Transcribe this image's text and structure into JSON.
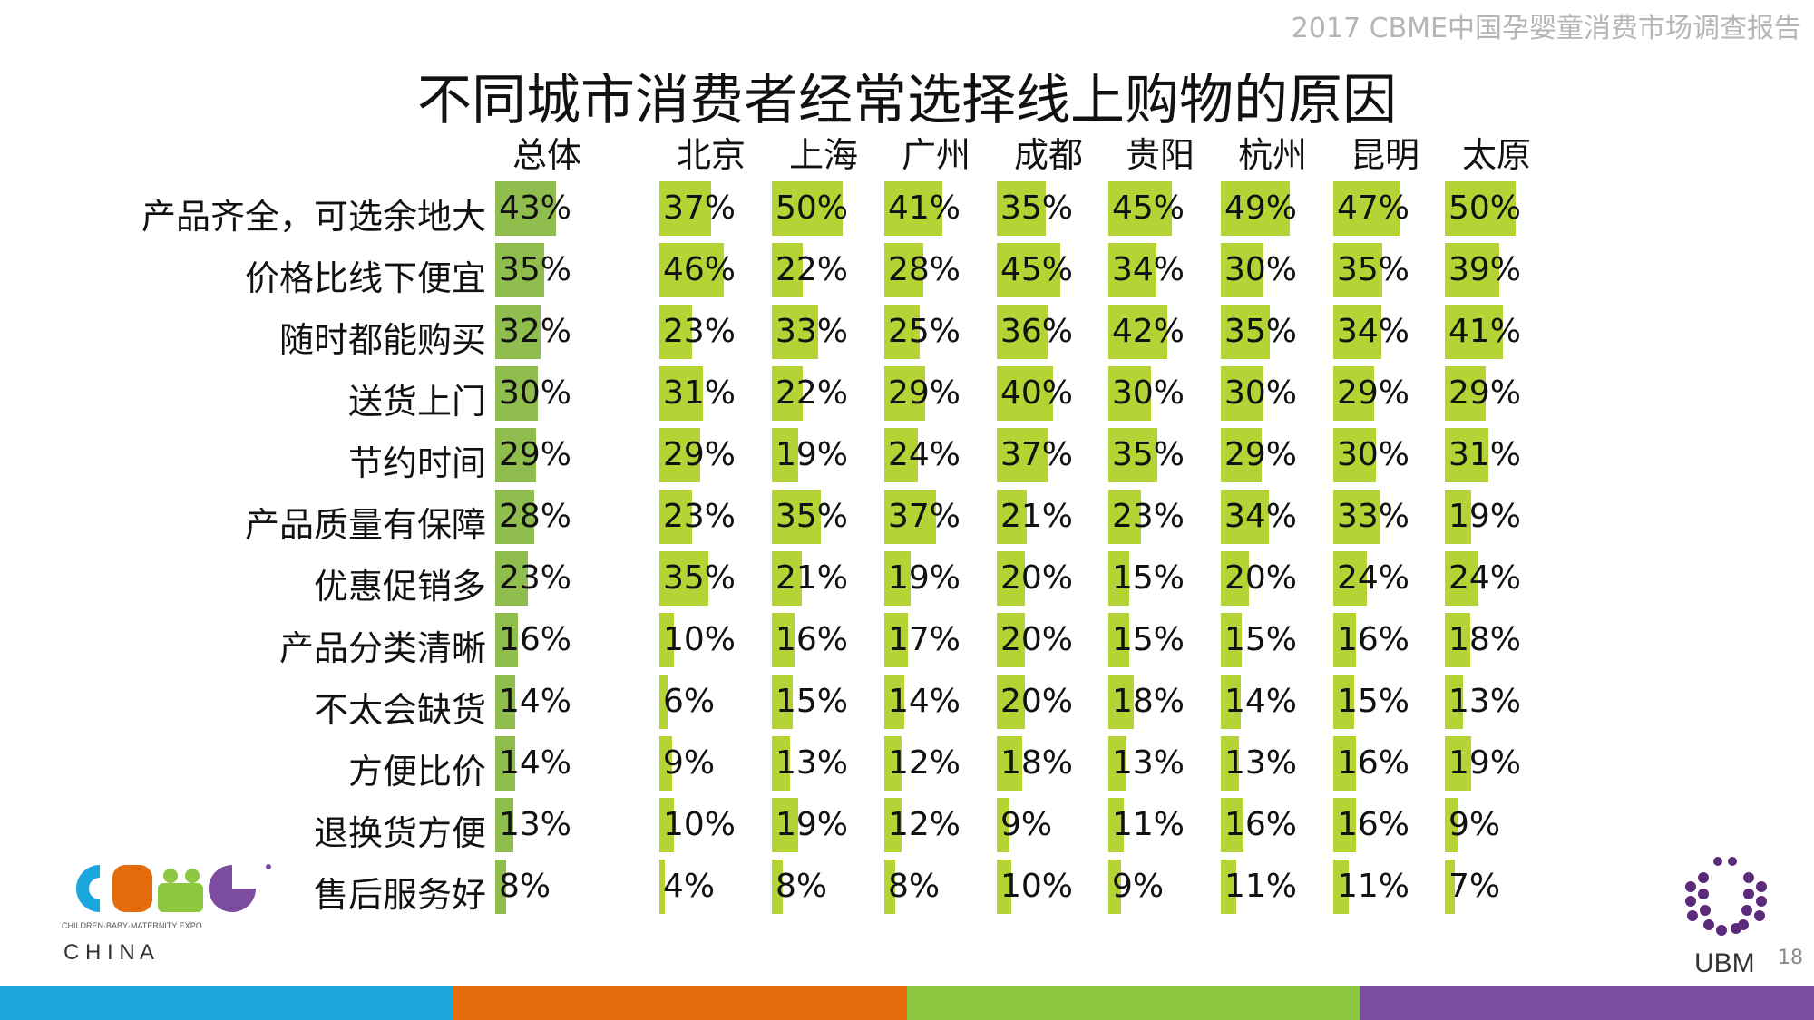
{
  "header_note": "2017 CBME中国孕婴童消费市场调查报告",
  "title": "不同城市消费者经常选择线上购物的原因",
  "page_number": "18",
  "logos": {
    "cbme_tagline": "CHILDREN·BABY·MATERNITY EXPO",
    "cbme_sub": "C H I N A",
    "ubm": "UBM"
  },
  "colors": {
    "overall_bar": "#8fbe4f",
    "city_bar": "#b4d334",
    "footer": [
      "#1ba7de",
      "#e46c0a",
      "#8dc63f",
      "#7b4c9f"
    ]
  },
  "chart_data": {
    "type": "table",
    "columns": [
      "总体",
      "北京",
      "上海",
      "广州",
      "成都",
      "贵阳",
      "杭州",
      "昆明",
      "太原"
    ],
    "rows": [
      {
        "label": "产品齐全，可选余地大",
        "values": [
          43,
          37,
          50,
          41,
          35,
          45,
          49,
          47,
          50
        ]
      },
      {
        "label": "价格比线下便宜",
        "values": [
          35,
          46,
          22,
          28,
          45,
          34,
          30,
          35,
          39
        ]
      },
      {
        "label": "随时都能购买",
        "values": [
          32,
          23,
          33,
          25,
          36,
          42,
          35,
          34,
          41
        ]
      },
      {
        "label": "送货上门",
        "values": [
          30,
          31,
          22,
          29,
          40,
          30,
          30,
          29,
          29
        ]
      },
      {
        "label": "节约时间",
        "values": [
          29,
          29,
          19,
          24,
          37,
          35,
          29,
          30,
          31
        ]
      },
      {
        "label": "产品质量有保障",
        "values": [
          28,
          23,
          35,
          37,
          21,
          23,
          34,
          33,
          19
        ]
      },
      {
        "label": "优惠促销多",
        "values": [
          23,
          35,
          21,
          19,
          20,
          15,
          20,
          24,
          24
        ]
      },
      {
        "label": "产品分类清晰",
        "values": [
          16,
          10,
          16,
          17,
          20,
          15,
          15,
          16,
          18
        ]
      },
      {
        "label": "不太会缺货",
        "values": [
          14,
          6,
          15,
          14,
          20,
          18,
          14,
          15,
          13
        ]
      },
      {
        "label": "方便比价",
        "values": [
          14,
          9,
          13,
          12,
          18,
          13,
          13,
          16,
          19
        ]
      },
      {
        "label": "退换货方便",
        "values": [
          13,
          10,
          19,
          12,
          9,
          11,
          16,
          16,
          9
        ]
      },
      {
        "label": "售后服务好",
        "values": [
          8,
          4,
          8,
          8,
          10,
          9,
          11,
          11,
          7
        ]
      }
    ],
    "value_suffix": "%"
  }
}
